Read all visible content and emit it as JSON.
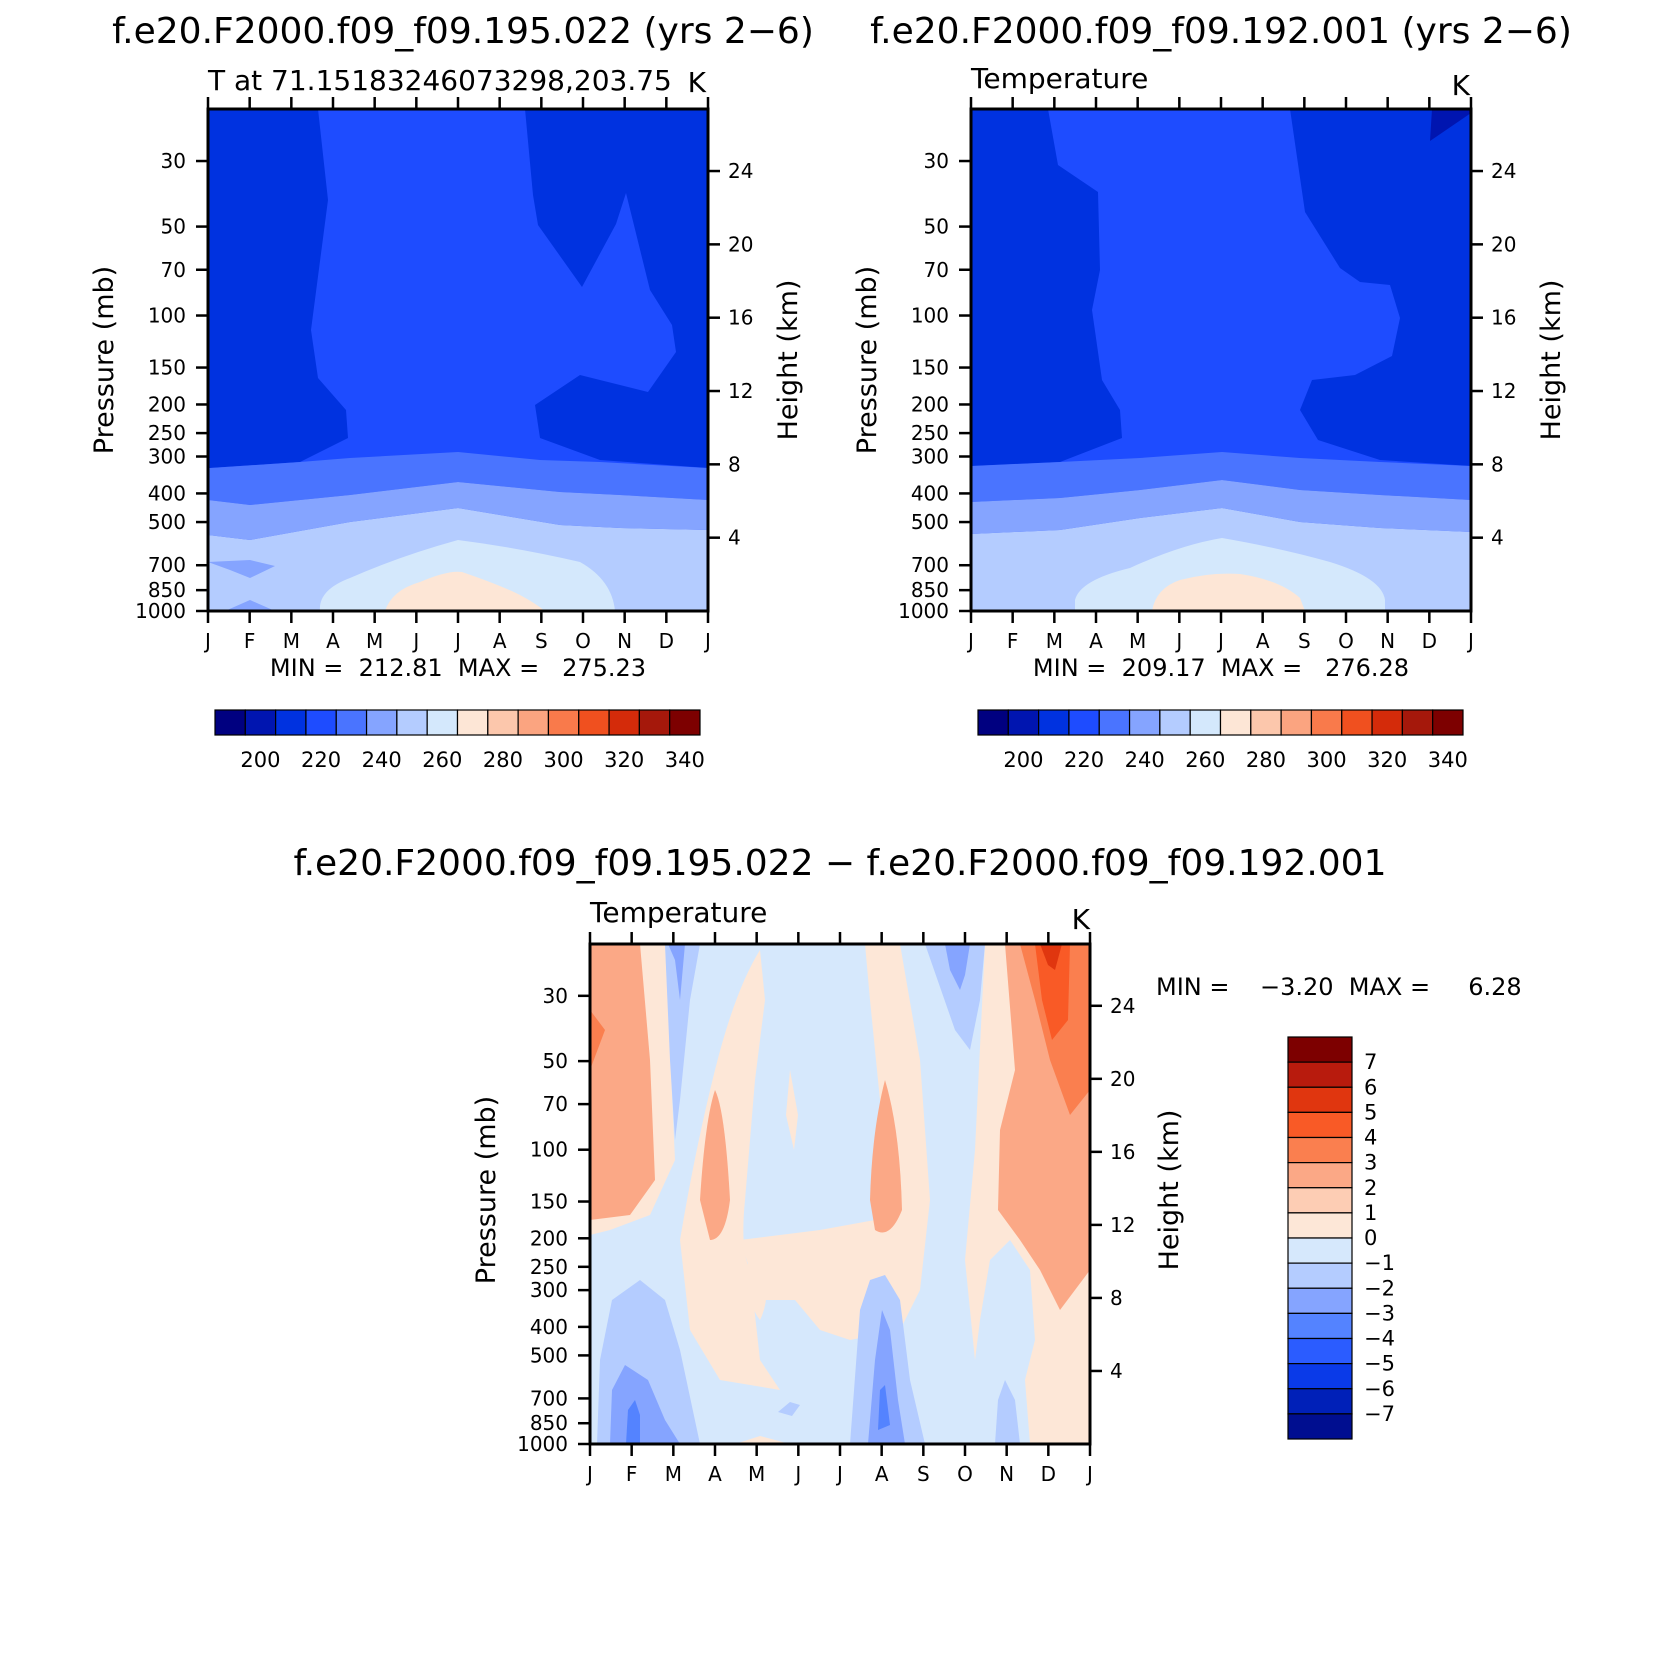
{
  "chart_data": [
    {
      "type": "heatmap",
      "title": "f.e20.F2000.f09_f09.195.022 (yrs 2−6)",
      "subtitle_left": "T at 71.15183246073298,203.75",
      "units": "K",
      "xlabel": "",
      "ylabel": "Pressure (mb)",
      "ylabel_right": "Height (km)",
      "x_ticks": [
        "J",
        "F",
        "M",
        "A",
        "M",
        "J",
        "J",
        "A",
        "S",
        "O",
        "N",
        "D",
        "J"
      ],
      "y_ticks": [
        "30",
        "50",
        "70",
        "100",
        "150",
        "200",
        "250",
        "300",
        "400",
        "500",
        "700",
        "850",
        "1000"
      ],
      "y_ticks_right": [
        "24",
        "20",
        "16",
        "12",
        "8",
        "4"
      ],
      "stats": "MIN =  212.81  MAX =   275.23",
      "contour_levels": [
        190,
        200,
        210,
        220,
        230,
        240,
        250,
        260,
        270,
        280,
        290,
        300,
        310,
        320,
        330,
        340,
        350
      ],
      "colorbar_labels": [
        "200",
        "220",
        "240",
        "260",
        "280",
        "300",
        "320",
        "340"
      ],
      "colorbar_colors": [
        "#000080",
        "#0015b0",
        "#0032e0",
        "#1e4cff",
        "#4a74ff",
        "#85a4ff",
        "#b4ccff",
        "#d4e8fc",
        "#fde6d6",
        "#fcc7ac",
        "#fba480",
        "#f97a4b",
        "#f0501f",
        "#d42b0a",
        "#a5180b",
        "#7d0000"
      ],
      "ylim_mb": [
        1000,
        20
      ]
    },
    {
      "type": "heatmap",
      "title": "f.e20.F2000.f09_f09.192.001 (yrs 2−6)",
      "subtitle_left": "Temperature",
      "units": "K",
      "ylabel": "Pressure (mb)",
      "ylabel_right": "Height (km)",
      "x_ticks": [
        "J",
        "F",
        "M",
        "A",
        "M",
        "J",
        "J",
        "A",
        "S",
        "O",
        "N",
        "D",
        "J"
      ],
      "y_ticks": [
        "30",
        "50",
        "70",
        "100",
        "150",
        "200",
        "250",
        "300",
        "400",
        "500",
        "700",
        "850",
        "1000"
      ],
      "y_ticks_right": [
        "24",
        "20",
        "16",
        "12",
        "8",
        "4"
      ],
      "stats": "MIN =  209.17  MAX =   276.28",
      "colorbar_labels": [
        "200",
        "220",
        "240",
        "260",
        "280",
        "300",
        "320",
        "340"
      ],
      "colorbar_colors": [
        "#000080",
        "#0015b0",
        "#0032e0",
        "#1e4cff",
        "#4a74ff",
        "#85a4ff",
        "#b4ccff",
        "#d4e8fc",
        "#fde6d6",
        "#fcc7ac",
        "#fba480",
        "#f97a4b",
        "#f0501f",
        "#d42b0a",
        "#a5180b",
        "#7d0000"
      ],
      "ylim_mb": [
        1000,
        20
      ]
    },
    {
      "type": "heatmap",
      "title": "f.e20.F2000.f09_f09.195.022 − f.e20.F2000.f09_f09.192.001",
      "subtitle_left": "Temperature",
      "units": "K",
      "ylabel": "Pressure (mb)",
      "ylabel_right": "Height (km)",
      "x_ticks": [
        "J",
        "F",
        "M",
        "A",
        "M",
        "J",
        "J",
        "A",
        "S",
        "O",
        "N",
        "D",
        "J"
      ],
      "y_ticks": [
        "30",
        "50",
        "70",
        "100",
        "150",
        "200",
        "250",
        "300",
        "400",
        "500",
        "700",
        "850",
        "1000"
      ],
      "y_ticks_right": [
        "24",
        "20",
        "16",
        "12",
        "8",
        "4"
      ],
      "stats": "MIN =    −3.20  MAX =     6.28",
      "colorbar_labels": [
        "7",
        "6",
        "5",
        "4",
        "3",
        "2",
        "1",
        "0",
        "−1",
        "−2",
        "−3",
        "−4",
        "−5",
        "−6",
        "−7"
      ],
      "colorbar_colors": [
        "#7d0000",
        "#b81b0d",
        "#e0360f",
        "#f95a26",
        "#fa7f4f",
        "#fba886",
        "#fdcdb4",
        "#fde7d7",
        "#d6e8fc",
        "#b4ccff",
        "#85a4ff",
        "#5483ff",
        "#2b5cff",
        "#0a3ae8",
        "#0020b8",
        "#000e90"
      ],
      "ylim_mb": [
        1000,
        20
      ]
    }
  ]
}
